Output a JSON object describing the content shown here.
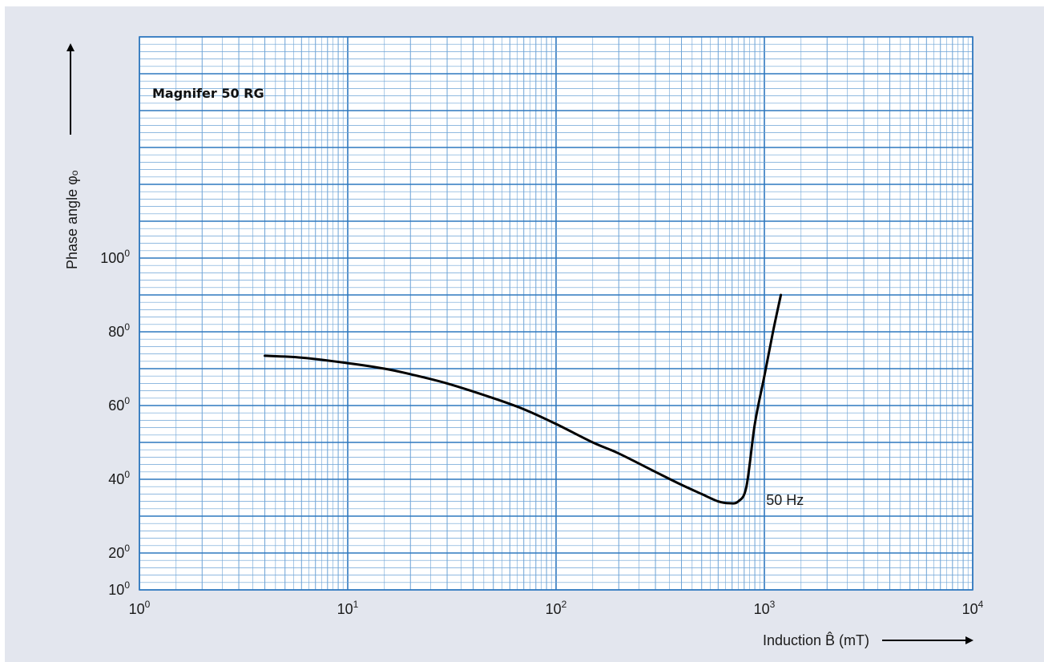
{
  "chart_data": {
    "type": "line",
    "title": "Magnifer 50 RG",
    "xlabel": "Induction B̂ (mT)",
    "ylabel": "Phase angle φₒ",
    "x_scale": "log",
    "xlim": [
      1,
      10000
    ],
    "ylim": [
      10,
      160
    ],
    "x_tick_labels": [
      {
        "base": "10",
        "exp": "0",
        "value": 1
      },
      {
        "base": "10",
        "exp": "1",
        "value": 10
      },
      {
        "base": "10",
        "exp": "2",
        "value": 100
      },
      {
        "base": "10",
        "exp": "3",
        "value": 1000
      },
      {
        "base": "10",
        "exp": "4",
        "value": 10000
      }
    ],
    "y_tick_labels": [
      {
        "base": "10",
        "exp": "0",
        "value": 10
      },
      {
        "base": "20",
        "exp": "0",
        "value": 20
      },
      {
        "base": "40",
        "exp": "0",
        "value": 40
      },
      {
        "base": "60",
        "exp": "0",
        "value": 60
      },
      {
        "base": "80",
        "exp": "0",
        "value": 80
      },
      {
        "base": "100",
        "exp": "0",
        "value": 100
      }
    ],
    "grid": true,
    "series": [
      {
        "name": "50 Hz",
        "x": [
          4,
          6,
          10,
          15,
          20,
          30,
          50,
          70,
          100,
          150,
          200,
          300,
          400,
          500,
          600,
          680,
          750,
          820,
          900,
          1000,
          1100,
          1200
        ],
        "y": [
          73.5,
          73,
          71.5,
          70,
          68.5,
          66,
          62,
          59,
          55,
          50,
          47,
          42,
          38.5,
          36,
          34,
          33.5,
          34,
          38,
          55,
          68,
          80,
          90
        ]
      }
    ]
  },
  "colors": {
    "background": "#e3e6ee",
    "plot_background": "#ffffff",
    "grid_major": "#2f78bf",
    "grid_minor": "#6da3d6",
    "curve": "#000000"
  }
}
